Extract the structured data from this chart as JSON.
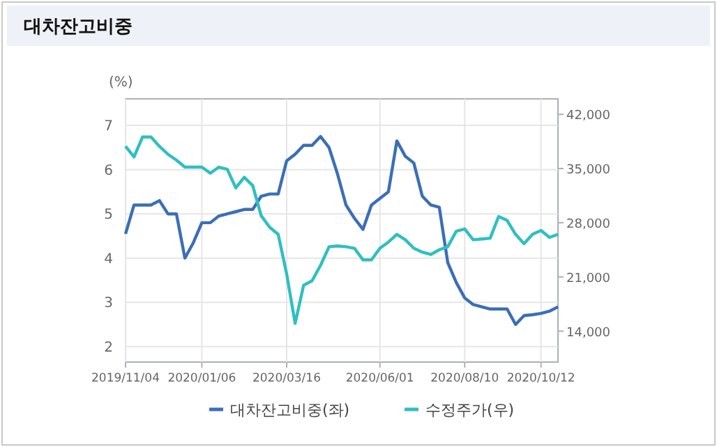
{
  "chart_data": {
    "type": "line",
    "title": "대차잔고비중",
    "ylabel": "(%)",
    "x": [
      "2019-11-04",
      "2019-11-11",
      "2019-11-18",
      "2019-11-25",
      "2019-12-02",
      "2019-12-09",
      "2019-12-16",
      "2019-12-23",
      "2019-12-30",
      "2020-01-06",
      "2020-01-13",
      "2020-01-20",
      "2020-01-27",
      "2020-02-03",
      "2020-02-10",
      "2020-02-17",
      "2020-02-24",
      "2020-03-02",
      "2020-03-09",
      "2020-03-16",
      "2020-03-23",
      "2020-03-30",
      "2020-04-06",
      "2020-04-13",
      "2020-04-20",
      "2020-04-27",
      "2020-05-04",
      "2020-05-11",
      "2020-05-18",
      "2020-05-25",
      "2020-06-01",
      "2020-06-08",
      "2020-06-15",
      "2020-06-22",
      "2020-06-29",
      "2020-07-06",
      "2020-07-13",
      "2020-07-20",
      "2020-07-27",
      "2020-08-03",
      "2020-08-10",
      "2020-08-17",
      "2020-08-24",
      "2020-08-31",
      "2020-09-07",
      "2020-09-14",
      "2020-09-21",
      "2020-09-28",
      "2020-10-05",
      "2020-10-12",
      "2020-10-19",
      "2020-10-26"
    ],
    "series": [
      {
        "name": "대차잔고비중(좌)",
        "color": "#3b6fb6",
        "values": [
          4.55,
          5.2,
          5.2,
          5.2,
          5.3,
          5.0,
          5.0,
          4.0,
          4.35,
          4.8,
          4.8,
          4.95,
          5.0,
          5.05,
          5.1,
          5.1,
          5.4,
          5.45,
          5.45,
          6.2,
          6.35,
          6.55,
          6.55,
          6.75,
          6.5,
          5.9,
          5.2,
          4.9,
          4.65,
          5.2,
          5.35,
          5.5,
          6.65,
          6.3,
          6.15,
          5.4,
          5.2,
          5.15,
          3.9,
          3.45,
          3.1,
          2.95,
          2.9,
          2.85,
          2.85,
          2.85,
          2.5,
          2.7,
          2.72,
          2.75,
          2.8,
          2.9
        ]
      },
      {
        "name": "수정주가(우)",
        "color": "#30bfc0",
        "axis": "y2",
        "values": [
          37870,
          36500,
          39070,
          39070,
          37870,
          36850,
          36080,
          35180,
          35180,
          35180,
          34400,
          35180,
          34900,
          32490,
          33870,
          32790,
          28900,
          27400,
          26500,
          21400,
          15000,
          19920,
          20500,
          22500,
          24900,
          25000,
          24900,
          24700,
          23200,
          23200,
          24700,
          25500,
          26500,
          25800,
          24700,
          24200,
          23900,
          24500,
          24900,
          26900,
          27200,
          25800,
          25900,
          26000,
          28800,
          28300,
          26500,
          25300,
          26500,
          27000,
          26100,
          26500
        ]
      }
    ],
    "xlim": [
      "2019-11-04",
      "2020-10-26"
    ],
    "xticks": [
      {
        "value": "2019-11-04",
        "label": "2019/11/04"
      },
      {
        "value": "2020-01-06",
        "label": "2020/01/06"
      },
      {
        "value": "2020-03-16",
        "label": "2020/03/16"
      },
      {
        "value": "2020-06-01",
        "label": "2020/06/01"
      },
      {
        "value": "2020-08-10",
        "label": "2020/08/10"
      },
      {
        "value": "2020-10-12",
        "label": "2020/10/12"
      }
    ],
    "ylim": [
      1.65,
      7.6
    ],
    "yticks": [
      2,
      3,
      4,
      5,
      6,
      7
    ],
    "y2lim": [
      10000,
      44000
    ],
    "y2ticks": [
      {
        "value": 14000,
        "label": "14,000"
      },
      {
        "value": 21000,
        "label": "21,000"
      },
      {
        "value": 28000,
        "label": "28,000"
      },
      {
        "value": 35000,
        "label": "35,000"
      },
      {
        "value": 42000,
        "label": "42,000"
      }
    ],
    "grid": true,
    "legend": "bottom",
    "marker": "none",
    "line_style": "solid"
  }
}
